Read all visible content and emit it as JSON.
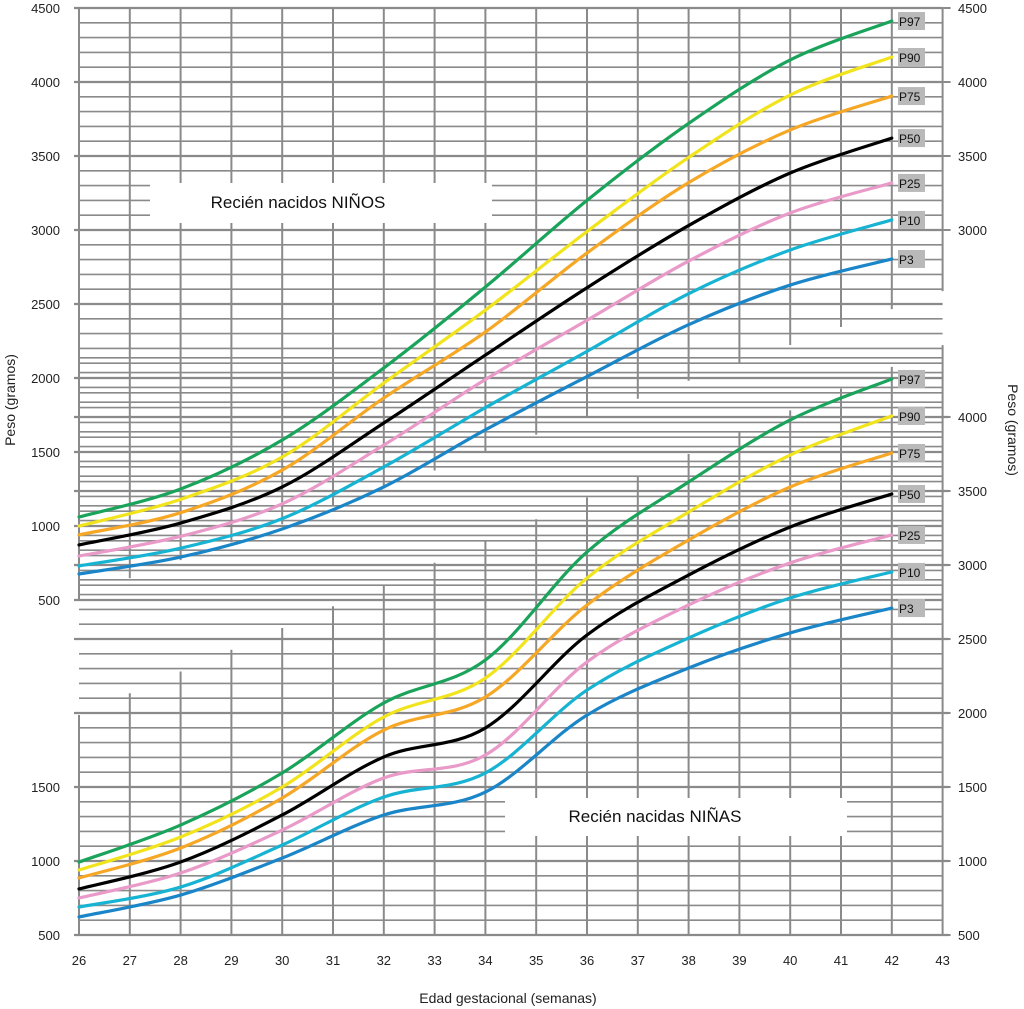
{
  "chart_data": [
    {
      "type": "line",
      "title": "Recién nacidos NIÑOS",
      "xlabel": "Edad gestacional (semanas)",
      "ylabel": "Peso (gramos)",
      "ylim": [
        500,
        4500
      ],
      "grid": true,
      "x": [
        26,
        28,
        30,
        32,
        34,
        36,
        38,
        40,
        42
      ],
      "left_ticks": [
        "4500",
        "4000",
        "3500",
        "3000",
        "2500",
        "2000",
        "1500",
        "1000",
        "500"
      ],
      "right_ticks": [
        "4500",
        "4000",
        "3500",
        "3000"
      ],
      "series": [
        {
          "name": "P97",
          "color": "#1aa35a",
          "values": [
            1061,
            1250,
            1581,
            2068,
            2615,
            3200,
            3720,
            4149,
            4412
          ]
        },
        {
          "name": "P90",
          "color": "#f2e41c",
          "values": [
            1000,
            1180,
            1466,
            1966,
            2459,
            2990,
            3490,
            3912,
            4169
          ]
        },
        {
          "name": "P75",
          "color": "#f6a725",
          "values": [
            940,
            1090,
            1378,
            1865,
            2311,
            2845,
            3320,
            3676,
            3905
          ]
        },
        {
          "name": "P50",
          "color": "#000000",
          "values": [
            872,
            1020,
            1264,
            1696,
            2155,
            2610,
            3030,
            3385,
            3621
          ]
        },
        {
          "name": "P25",
          "color": "#e99ac8",
          "values": [
            797,
            930,
            1150,
            1547,
            1990,
            2390,
            2790,
            3115,
            3318
          ]
        },
        {
          "name": "P10",
          "color": "#17b3d2",
          "values": [
            730,
            850,
            1050,
            1399,
            1800,
            2180,
            2570,
            2865,
            3068
          ]
        },
        {
          "name": "P3",
          "color": "#1a86c8",
          "values": [
            676,
            790,
            980,
            1264,
            1650,
            2010,
            2360,
            2628,
            2804
          ]
        }
      ]
    },
    {
      "type": "line",
      "title": "Recién nacidas NIÑAS",
      "xlabel": "Edad gestacional (semanas)",
      "ylabel": "Peso (gramos)",
      "ylim": [
        500,
        4400
      ],
      "grid": true,
      "x": [
        26,
        28,
        30,
        32,
        34,
        36,
        38,
        40,
        42
      ],
      "left_ticks": [
        "1500",
        "1000",
        "500"
      ],
      "right_ticks": [
        "4000",
        "3500",
        "3000",
        "2500",
        "2000",
        "1500",
        "1000",
        "500"
      ],
      "series": [
        {
          "name": "P97",
          "color": "#1aa35a",
          "values": [
            993,
            1243,
            1595,
            2068,
            2358,
            3088,
            3561,
            3980,
            4257
          ]
        },
        {
          "name": "P90",
          "color": "#f2e41c",
          "values": [
            939,
            1162,
            1500,
            1973,
            2236,
            2912,
            3358,
            3743,
            4007
          ]
        },
        {
          "name": "P75",
          "color": "#f6a725",
          "values": [
            885,
            1088,
            1426,
            1885,
            2108,
            2730,
            3169,
            3527,
            3757
          ]
        },
        {
          "name": "P50",
          "color": "#000000",
          "values": [
            811,
            993,
            1311,
            1703,
            1899,
            2527,
            2932,
            3257,
            3480
          ]
        },
        {
          "name": "P25",
          "color": "#e99ac8",
          "values": [
            750,
            919,
            1209,
            1561,
            1716,
            2345,
            2730,
            3014,
            3203
          ]
        },
        {
          "name": "P10",
          "color": "#17b3d2",
          "values": [
            689,
            824,
            1108,
            1432,
            1595,
            2155,
            2507,
            2777,
            2953
          ]
        },
        {
          "name": "P3",
          "color": "#1a86c8",
          "values": [
            622,
            770,
            1020,
            1311,
            1466,
            1986,
            2304,
            2541,
            2709
          ]
        }
      ]
    }
  ],
  "x_ticks": [
    "26",
    "27",
    "28",
    "29",
    "30",
    "31",
    "32",
    "33",
    "34",
    "35",
    "36",
    "37",
    "38",
    "39",
    "40",
    "41",
    "42",
    "43"
  ],
  "xlabel": "Edad gestacional (semanas)",
  "ylabel_left": "Peso (gramos)",
  "ylabel_right": "Peso (gramos)"
}
